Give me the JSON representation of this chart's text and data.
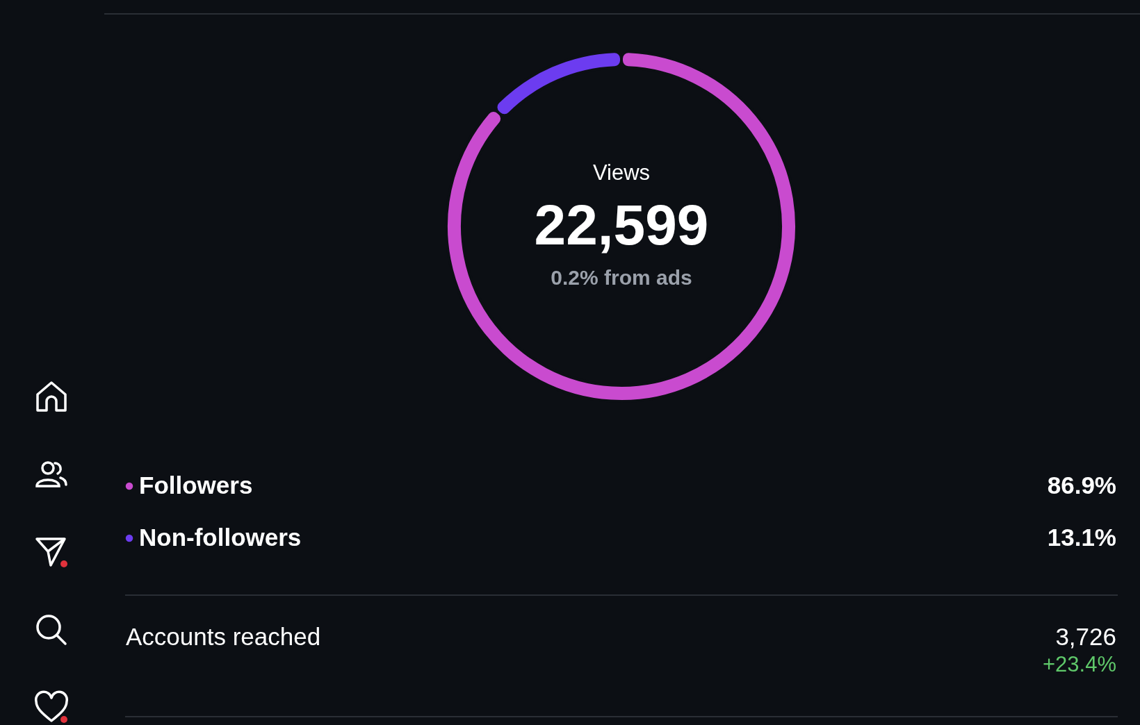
{
  "chart_data": {
    "type": "donut",
    "categories": [
      "Followers",
      "Non-followers"
    ],
    "values": [
      86.9,
      13.1
    ],
    "colors": [
      "#c94bcf",
      "#6c3cf0"
    ],
    "value_labels": [
      "86.9%",
      "13.1%"
    ],
    "legend": "bottom",
    "annotations": [
      "Views",
      "22,599",
      "0.2% from ads",
      "Accounts reached",
      "3,726",
      "+23.4%"
    ]
  }
}
